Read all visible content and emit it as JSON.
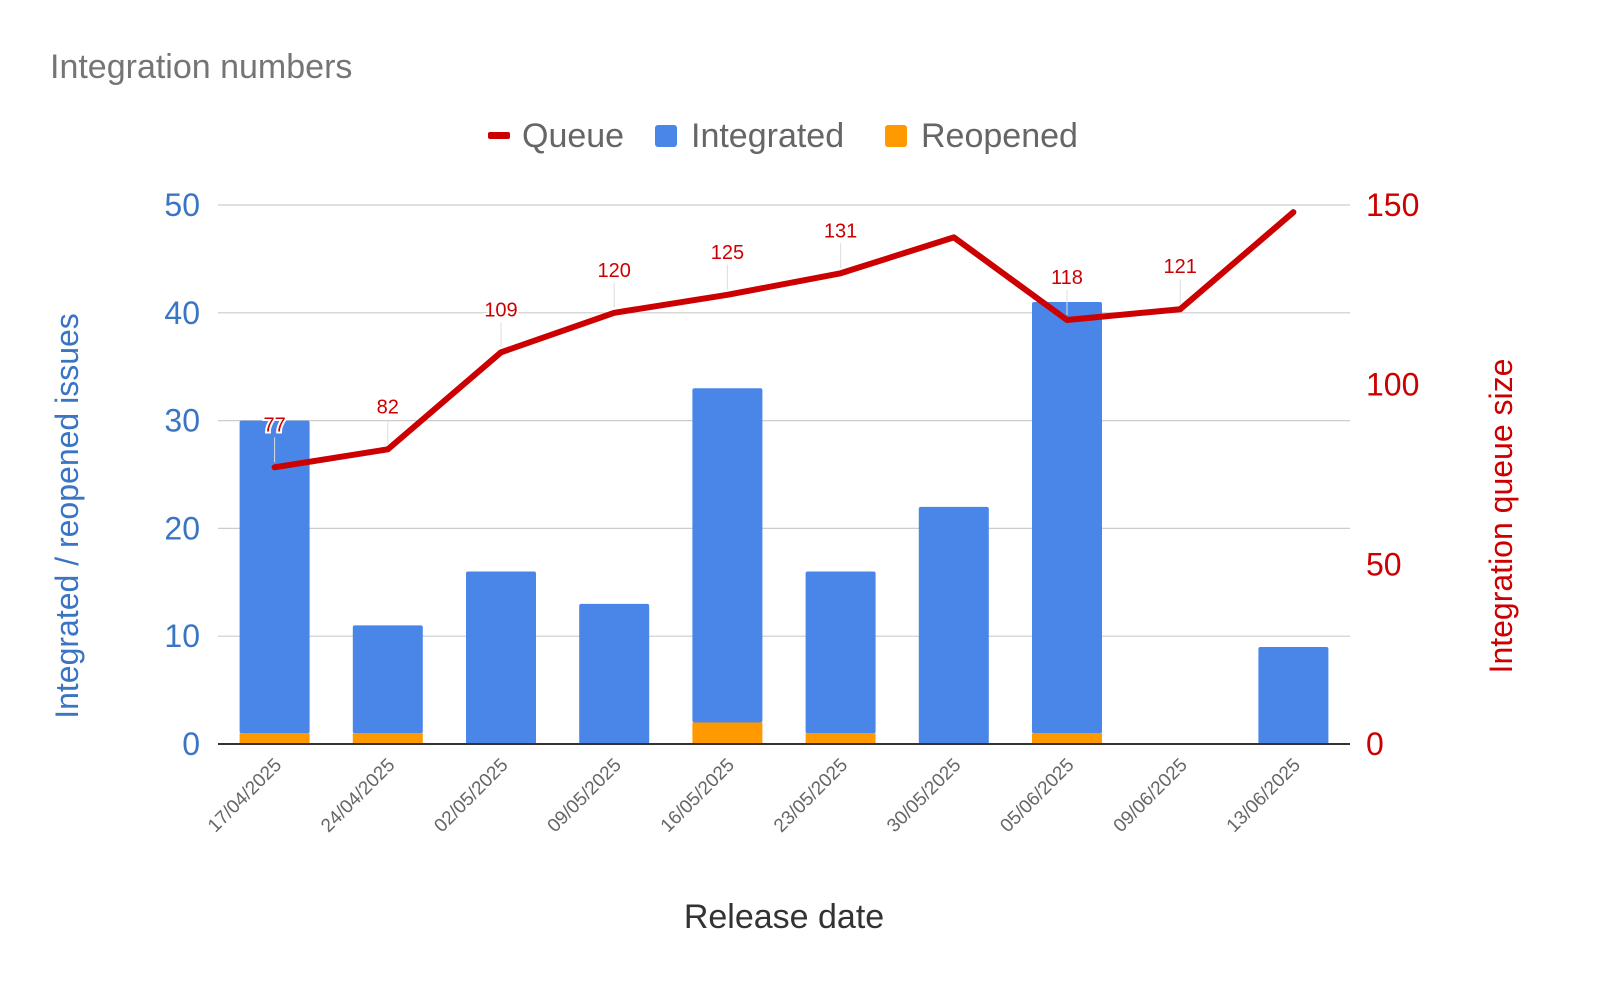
{
  "chart_data": {
    "type": "bar",
    "title": "Integration numbers",
    "xlabel": "Release date",
    "ylabel_left": "Integrated / reopened issues",
    "ylabel_right": "Integration queue size",
    "ylim_left": [
      0,
      50
    ],
    "ylim_right": [
      0,
      150
    ],
    "left_ticks": [
      "0",
      "10",
      "20",
      "30",
      "40",
      "50"
    ],
    "right_ticks": [
      "0",
      "50",
      "100",
      "150"
    ],
    "grid": true,
    "legend_position": "top",
    "stacked": true,
    "categories": [
      "17/04/2025",
      "24/04/2025",
      "02/05/2025",
      "09/05/2025",
      "16/05/2025",
      "23/05/2025",
      "30/05/2025",
      "05/06/2025",
      "09/06/2025",
      "13/06/2025"
    ],
    "series": [
      {
        "name": "Queue",
        "type": "line",
        "axis": "right",
        "color": "#cc0000",
        "values": [
          77,
          82,
          109,
          120,
          125,
          131,
          141,
          118,
          121,
          148
        ],
        "data_labels": [
          "77",
          "82",
          "109",
          "120",
          "125",
          "131",
          "",
          "118",
          "121",
          ""
        ]
      },
      {
        "name": "Integrated",
        "type": "bar",
        "axis": "left",
        "color": "#4a86e8",
        "values": [
          29,
          10,
          16,
          13,
          31,
          15,
          22,
          40,
          0,
          9
        ]
      },
      {
        "name": "Reopened",
        "type": "bar",
        "axis": "left",
        "color": "#ff9900",
        "values": [
          1,
          1,
          0,
          0,
          2,
          1,
          0,
          1,
          0,
          0
        ]
      }
    ]
  }
}
